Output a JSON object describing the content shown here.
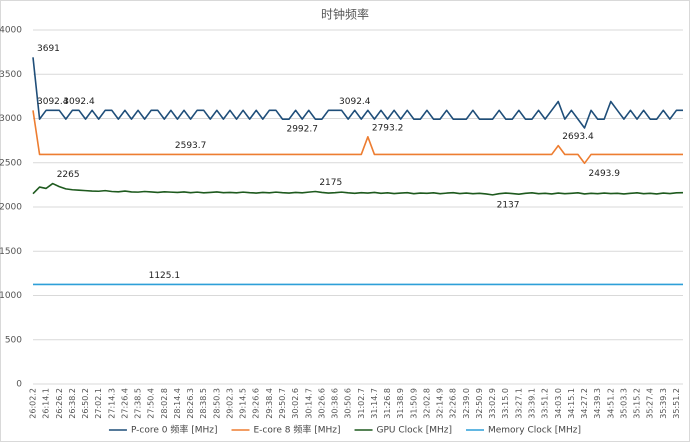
{
  "chart_data": {
    "type": "line",
    "title": "时钟频率",
    "categories": [
      "26:02.2",
      null,
      "26:14.1",
      null,
      "26:26.2",
      null,
      "26:38.2",
      null,
      "26:50.2",
      null,
      "27:02.1",
      null,
      "27:14.3",
      null,
      "27:26.4",
      null,
      "27:38.5",
      null,
      "27:50.4",
      null,
      "28:02.8",
      null,
      "28:14.4",
      null,
      "28:26.3",
      null,
      "28:38.5",
      null,
      "28:50.3",
      null,
      "29:02.3",
      null,
      "29:14.5",
      null,
      "29:26.6",
      null,
      "29:38.4",
      null,
      "29:50.7",
      null,
      "30:02.6",
      null,
      "30:14.7",
      null,
      "30:26.6",
      null,
      "30:38.6",
      null,
      "30:50.6",
      null,
      "31:02.7",
      null,
      "31:14.7",
      null,
      "31:26.8",
      null,
      "31:38.9",
      null,
      "31:50.9",
      null,
      "32:02.8",
      null,
      "32:14.9",
      null,
      "32:26.8",
      null,
      "32:39.0",
      null,
      "32:50.9",
      null,
      "33:02.9",
      null,
      "33:15.0",
      null,
      "33:27.1",
      null,
      "33:39.1",
      null,
      "33:51.2",
      null,
      "34:03.0",
      null,
      "34:15.1",
      null,
      "34:27.2",
      null,
      "34:39.3",
      null,
      "34:51.2",
      null,
      "35:03.3",
      null,
      "35:15.2",
      null,
      "35:27.4",
      null,
      "35:39.3",
      null,
      "35:51.2",
      null
    ],
    "series": [
      {
        "name": "P-core 0 频率 [MHz]",
        "color": "#1f4e79",
        "values": [
          3691,
          2992.7,
          3092.4,
          3092.4,
          3092.4,
          2992.7,
          3092.4,
          3092.4,
          2992.7,
          3092.4,
          2992.7,
          3092.4,
          3092.4,
          2992.7,
          3092.4,
          2992.7,
          3092.4,
          2992.7,
          3092.4,
          3092.4,
          2992.7,
          3092.4,
          2992.7,
          3092.4,
          2992.7,
          3092.4,
          3092.4,
          2992.7,
          3092.4,
          2992.7,
          3092.4,
          2992.7,
          3092.4,
          2992.7,
          3092.4,
          2992.7,
          3092.4,
          3092.4,
          2992.7,
          2992.7,
          3092.4,
          2992.7,
          3092.4,
          2992.7,
          2992.7,
          3092.4,
          3092.4,
          3092.4,
          2992.7,
          3092.4,
          2992.7,
          3092.4,
          2992.7,
          3092.4,
          2992.7,
          3092.4,
          2992.7,
          3092.4,
          2992.7,
          2992.7,
          3092.4,
          2992.7,
          2992.7,
          3092.4,
          2992.7,
          2992.7,
          2992.7,
          3092.4,
          2992.7,
          2992.7,
          2992.7,
          3092.4,
          2992.7,
          2992.7,
          3092.4,
          2992.7,
          2992.7,
          3092.4,
          2992.7,
          3092.4,
          3192.1,
          2992.7,
          3092.4,
          2992.7,
          2893,
          3092.4,
          2992.7,
          2992.7,
          3192.1,
          3092.4,
          2992.7,
          3092.4,
          2992.7,
          3092.4,
          2992.7,
          2992.7,
          3092.4,
          2992.7,
          3092.4,
          3092.4
        ],
        "value_labels": [
          "3691",
          null,
          null,
          null,
          "3092.4",
          null,
          null,
          null,
          null,
          null,
          null,
          null,
          null,
          null,
          null,
          null,
          null,
          null,
          null,
          null,
          null,
          null,
          null,
          null,
          null,
          null,
          null,
          null,
          null,
          null,
          null,
          null,
          null,
          null,
          null,
          null,
          null,
          null,
          "2992.7",
          null,
          null,
          null,
          null,
          null,
          null,
          null,
          "3092.4",
          null,
          null,
          null,
          null,
          null,
          null,
          null,
          null,
          null,
          null,
          null,
          null,
          null,
          null,
          null,
          null,
          null,
          null,
          null,
          null,
          null,
          null,
          null,
          null,
          null,
          null,
          null,
          null,
          null,
          null,
          null,
          null,
          null,
          null,
          null,
          null,
          null,
          null,
          null,
          null,
          null,
          null,
          null,
          null,
          null,
          null,
          null,
          null,
          null,
          null,
          null,
          null,
          null
        ]
      },
      {
        "name": "E-core 8 频率 [MHz]",
        "color": "#ed7d31",
        "values": [
          3092.4,
          2593.7,
          2593.7,
          2593.7,
          2593.7,
          2593.7,
          2593.7,
          2593.7,
          2593.7,
          2593.7,
          2593.7,
          2593.7,
          2593.7,
          2593.7,
          2593.7,
          2593.7,
          2593.7,
          2593.7,
          2593.7,
          2593.7,
          2593.7,
          2593.7,
          2593.7,
          2593.7,
          2593.7,
          2593.7,
          2593.7,
          2593.7,
          2593.7,
          2593.7,
          2593.7,
          2593.7,
          2593.7,
          2593.7,
          2593.7,
          2593.7,
          2593.7,
          2593.7,
          2593.7,
          2593.7,
          2593.7,
          2593.7,
          2593.7,
          2593.7,
          2593.7,
          2593.7,
          2593.7,
          2593.7,
          2593.7,
          2593.7,
          2593.7,
          2793.2,
          2593.7,
          2593.7,
          2593.7,
          2593.7,
          2593.7,
          2593.7,
          2593.7,
          2593.7,
          2593.7,
          2593.7,
          2593.7,
          2593.7,
          2593.7,
          2593.7,
          2593.7,
          2593.7,
          2593.7,
          2593.7,
          2593.7,
          2593.7,
          2593.7,
          2593.7,
          2593.7,
          2593.7,
          2593.7,
          2593.7,
          2593.7,
          2593.7,
          2693.4,
          2593.7,
          2593.7,
          2593.7,
          2493.9,
          2593.7,
          2593.7,
          2593.7,
          2593.7,
          2593.7,
          2593.7,
          2593.7,
          2593.7,
          2593.7,
          2593.7,
          2593.7,
          2593.7,
          2593.7,
          2593.7,
          2593.7
        ],
        "value_labels": [
          "3092.4",
          null,
          null,
          null,
          null,
          null,
          null,
          null,
          null,
          null,
          null,
          null,
          null,
          null,
          null,
          null,
          null,
          null,
          null,
          null,
          null,
          "2593.7",
          null,
          null,
          null,
          null,
          null,
          null,
          null,
          null,
          null,
          null,
          null,
          null,
          null,
          null,
          null,
          null,
          null,
          null,
          null,
          null,
          null,
          null,
          null,
          null,
          null,
          null,
          null,
          null,
          null,
          "2793.2",
          null,
          null,
          null,
          null,
          null,
          null,
          null,
          null,
          null,
          null,
          null,
          null,
          null,
          null,
          null,
          null,
          null,
          null,
          null,
          null,
          null,
          null,
          null,
          null,
          null,
          null,
          null,
          null,
          "2693.4",
          null,
          null,
          null,
          "2493.9",
          null,
          null,
          null,
          null,
          null,
          null,
          null,
          null,
          null,
          null,
          null,
          null,
          null,
          null,
          null
        ]
      },
      {
        "name": "GPU Clock [MHz]",
        "color": "#1e5a1e",
        "values": [
          2150,
          2225,
          2210,
          2265,
          2230,
          2205,
          2195,
          2190,
          2185,
          2180,
          2178,
          2185,
          2175,
          2172,
          2180,
          2170,
          2168,
          2175,
          2170,
          2165,
          2172,
          2168,
          2165,
          2170,
          2162,
          2168,
          2160,
          2165,
          2170,
          2162,
          2165,
          2160,
          2168,
          2162,
          2158,
          2165,
          2160,
          2168,
          2162,
          2158,
          2165,
          2160,
          2168,
          2175,
          2165,
          2158,
          2162,
          2168,
          2160,
          2155,
          2162,
          2158,
          2165,
          2155,
          2160,
          2152,
          2158,
          2162,
          2150,
          2158,
          2155,
          2160,
          2150,
          2157,
          2162,
          2152,
          2158,
          2150,
          2155,
          2148,
          2137,
          2150,
          2158,
          2152,
          2145,
          2155,
          2160,
          2150,
          2155,
          2148,
          2158,
          2150,
          2155,
          2160,
          2148,
          2155,
          2150,
          2158,
          2152,
          2155,
          2148,
          2155,
          2160,
          2150,
          2155,
          2148,
          2158,
          2152,
          2160,
          2162
        ],
        "value_labels": [
          null,
          null,
          null,
          "2265",
          null,
          null,
          null,
          null,
          null,
          null,
          null,
          null,
          null,
          null,
          null,
          null,
          null,
          null,
          null,
          null,
          null,
          null,
          null,
          null,
          null,
          null,
          null,
          null,
          null,
          null,
          null,
          null,
          null,
          null,
          null,
          null,
          null,
          null,
          null,
          null,
          null,
          null,
          null,
          "2175",
          null,
          null,
          null,
          null,
          null,
          null,
          null,
          null,
          null,
          null,
          null,
          null,
          null,
          null,
          null,
          null,
          null,
          null,
          null,
          null,
          null,
          null,
          null,
          null,
          null,
          null,
          "2137",
          null,
          null,
          null,
          null,
          null,
          null,
          null,
          null,
          null,
          null,
          null,
          null,
          null,
          null,
          null,
          null,
          null,
          null,
          null,
          null,
          null,
          null,
          null,
          null,
          null,
          null,
          null,
          null,
          null
        ]
      },
      {
        "name": "Memory Clock [MHz]",
        "color": "#2e9fd8",
        "values": [
          1125.1,
          1125.1,
          1125.1,
          1125.1,
          1125.1,
          1125.1,
          1125.1,
          1125.1,
          1125.1,
          1125.1,
          1125.1,
          1125.1,
          1125.1,
          1125.1,
          1125.1,
          1125.1,
          1125.1,
          1125.1,
          1125.1,
          1125.1,
          1125.1,
          1125.1,
          1125.1,
          1125.1,
          1125.1,
          1125.1,
          1125.1,
          1125.1,
          1125.1,
          1125.1,
          1125.1,
          1125.1,
          1125.1,
          1125.1,
          1125.1,
          1125.1,
          1125.1,
          1125.1,
          1125.1,
          1125.1,
          1125.1,
          1125.1,
          1125.1,
          1125.1,
          1125.1,
          1125.1,
          1125.1,
          1125.1,
          1125.1,
          1125.1,
          1125.1,
          1125.1,
          1125.1,
          1125.1,
          1125.1,
          1125.1,
          1125.1,
          1125.1,
          1125.1,
          1125.1,
          1125.1,
          1125.1,
          1125.1,
          1125.1,
          1125.1,
          1125.1,
          1125.1,
          1125.1,
          1125.1,
          1125.1,
          1125.1,
          1125.1,
          1125.1,
          1125.1,
          1125.1,
          1125.1,
          1125.1,
          1125.1,
          1125.1,
          1125.1,
          1125.1,
          1125.1,
          1125.1,
          1125.1,
          1125.1,
          1125.1,
          1125.1,
          1125.1,
          1125.1,
          1125.1,
          1125.1,
          1125.1,
          1125.1,
          1125.1,
          1125.1,
          1125.1,
          1125.1,
          1125.1,
          1125.1,
          1125.1
        ],
        "value_labels": [
          null,
          null,
          null,
          null,
          null,
          null,
          null,
          null,
          null,
          null,
          null,
          null,
          null,
          null,
          null,
          null,
          null,
          "1125.1",
          null,
          null,
          null,
          null,
          null,
          null,
          null,
          null,
          null,
          null,
          null,
          null,
          null,
          null,
          null,
          null,
          null,
          null,
          null,
          null,
          null,
          null,
          null,
          null,
          null,
          null,
          null,
          null,
          null,
          null,
          null,
          null,
          null,
          null,
          null,
          null,
          null,
          null,
          null,
          null,
          null,
          null,
          null,
          null,
          null,
          null,
          null,
          null,
          null,
          null,
          null,
          null,
          null,
          null,
          null,
          null,
          null,
          null,
          null,
          null,
          null,
          null,
          null,
          null,
          null,
          null,
          null,
          null,
          null,
          null,
          null,
          null,
          null,
          null,
          null,
          null,
          null,
          null,
          null,
          null,
          null,
          null
        ]
      }
    ],
    "ylim": [
      0,
      4000
    ],
    "yticks": [
      0,
      500,
      1000,
      1500,
      2000,
      2500,
      3000,
      3500,
      4000
    ],
    "grid": true,
    "legend": "bottom"
  }
}
